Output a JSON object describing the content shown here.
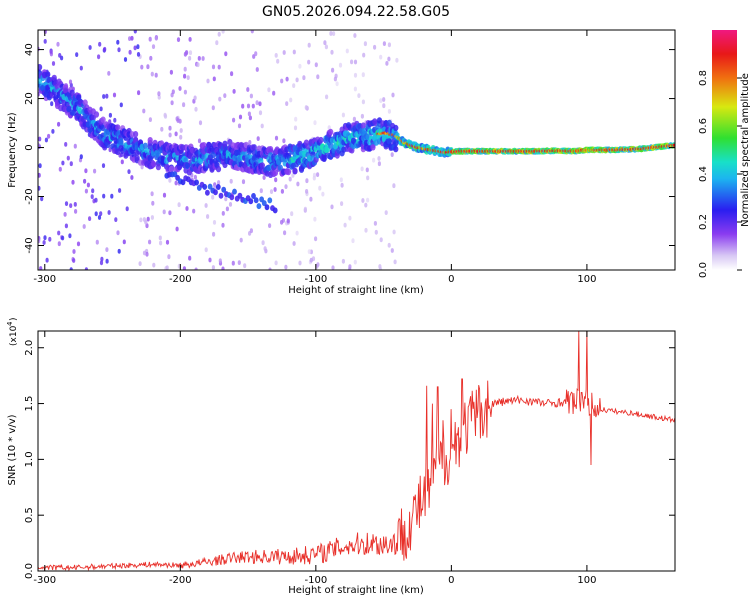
{
  "title": "GN05.2026.094.22.58.G05",
  "colors": {
    "snr_line": "#e8302a",
    "axes": "#000000",
    "background": "#ffffff"
  },
  "chart_data": [
    {
      "type": "heatmap",
      "title": "GN05.2026.094.22.58.G05",
      "xlabel": "Height of straight line (km)",
      "ylabel": "Frequency (Hz)",
      "xlim": [
        -305,
        165
      ],
      "ylim": [
        -50,
        48
      ],
      "x_ticks": [
        -300,
        -200,
        -100,
        0,
        100
      ],
      "x_tick_labels": [
        "-300",
        "-200",
        "-100",
        "0",
        "100"
      ],
      "y_ticks": [
        -40,
        -20,
        0,
        20,
        40
      ],
      "y_tick_labels": [
        "-40",
        "-20",
        "0",
        "20",
        "40"
      ],
      "colorbar": {
        "label": "Normalized spectral amplitude",
        "range": [
          0,
          1
        ],
        "ticks": [
          0,
          0.2,
          0.4,
          0.6,
          0.8
        ],
        "tick_labels": [
          "0.0",
          "0.2",
          "0.4",
          "0.6",
          "0.8"
        ],
        "colormap": "rainbow (purple-blue-cyan-green-yellow-red-magenta)"
      },
      "ridge": {
        "description": "dominant frequency track vs height",
        "x": [
          -305,
          -290,
          -275,
          -265,
          -255,
          -240,
          -225,
          -210,
          -195,
          -180,
          -165,
          -150,
          -135,
          -120,
          -105,
          -90,
          -75,
          -60,
          -50,
          -42,
          -35,
          -25,
          -15,
          -5,
          5,
          20,
          40,
          60,
          80,
          90,
          100,
          120,
          140,
          165
        ],
        "y": [
          28,
          22,
          16,
          10,
          5,
          2,
          -2,
          -4,
          -5,
          -4,
          -3,
          -4,
          -6,
          -5,
          -3,
          1,
          4,
          5,
          6,
          5,
          2,
          0,
          -1,
          -2,
          -1.5,
          -1.5,
          -1.5,
          -1.5,
          -1.3,
          -1.5,
          -1,
          -1,
          -0.5,
          1
        ]
      },
      "secondary_feature": {
        "x": [
          -210,
          -190,
          -170,
          -150,
          -130
        ],
        "y": [
          -12,
          -15,
          -18,
          -21,
          -24
        ]
      }
    },
    {
      "type": "line",
      "xlabel": "Height of straight line (km)",
      "ylabel": "SNR (10 * v/v)",
      "y_scale_label": "(x10",
      "y_scale_exp": "4",
      "xlim": [
        -305,
        165
      ],
      "ylim": [
        0,
        2.15
      ],
      "x_ticks": [
        -300,
        -200,
        -100,
        0,
        100
      ],
      "x_tick_labels": [
        "-300",
        "-200",
        "-100",
        "0",
        "100"
      ],
      "y_ticks": [
        0,
        0.5,
        1.0,
        1.5,
        2.0
      ],
      "y_tick_labels": [
        "0.0",
        "0.5",
        "1.0",
        "1.5",
        "2.0"
      ],
      "series": [
        {
          "color": "#e8302a",
          "x": [
            -305,
            -280,
            -260,
            -240,
            -220,
            -200,
            -180,
            -160,
            -140,
            -120,
            -100,
            -90,
            -80,
            -70,
            -60,
            -50,
            -40,
            -30,
            -20,
            -10,
            0,
            10,
            20,
            30,
            40,
            50,
            60,
            70,
            80,
            90,
            100,
            110,
            120,
            130,
            140,
            150,
            165
          ],
          "y": [
            0.03,
            0.03,
            0.04,
            0.05,
            0.06,
            0.05,
            0.08,
            0.12,
            0.13,
            0.13,
            0.15,
            0.18,
            0.22,
            0.24,
            0.25,
            0.24,
            0.26,
            0.45,
            0.65,
            0.9,
            1.1,
            1.28,
            1.42,
            1.5,
            1.52,
            1.53,
            1.52,
            1.5,
            1.51,
            1.52,
            1.5,
            1.45,
            1.43,
            1.42,
            1.4,
            1.38,
            1.35
          ]
        }
      ],
      "spikes": {
        "x": [
          -18,
          -14,
          -10,
          -6,
          0,
          8,
          94,
          96,
          100,
          103
        ],
        "y": [
          1.66,
          1.5,
          1.65,
          1.35,
          1.45,
          1.72,
          2.15,
          1.6,
          2.15,
          0.95
        ]
      }
    }
  ]
}
